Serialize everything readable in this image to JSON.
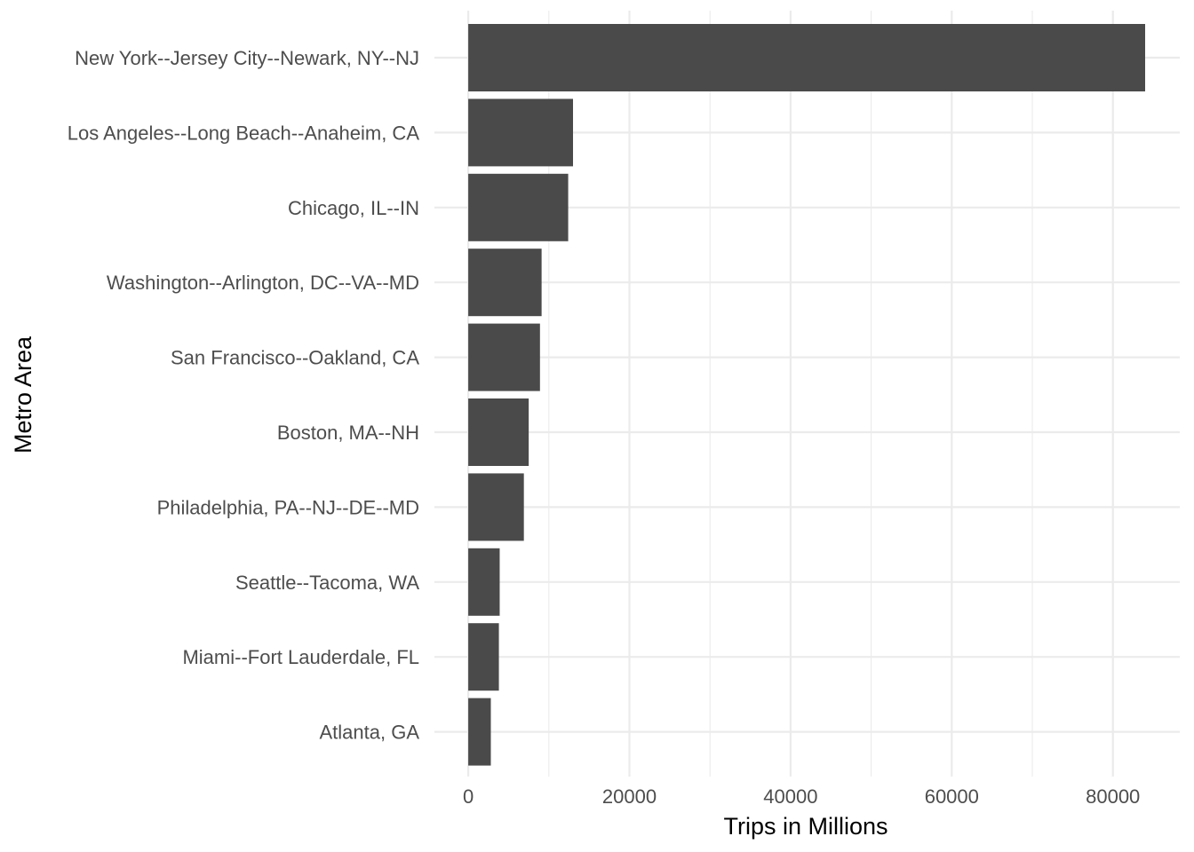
{
  "chart_data": {
    "type": "bar",
    "orientation": "horizontal",
    "categories": [
      "New York--Jersey City--Newark, NY--NJ",
      "Los Angeles--Long Beach--Anaheim, CA",
      "Chicago, IL--IN",
      "Washington--Arlington, DC--VA--MD",
      "San Francisco--Oakland, CA",
      "Boston, MA--NH",
      "Philadelphia, PA--NJ--DE--MD",
      "Seattle--Tacoma, WA",
      "Miami--Fort Lauderdale, FL",
      "Atlanta, GA"
    ],
    "values": [
      84000,
      13000,
      12400,
      9100,
      8900,
      7500,
      6900,
      3900,
      3800,
      2800
    ],
    "xlabel": "Trips in Millions",
    "ylabel": "Metro Area",
    "xlim": [
      -4200,
      88300
    ],
    "x_ticks": [
      0,
      20000,
      40000,
      60000,
      80000
    ],
    "x_tick_labels": [
      "0",
      "20000",
      "40000",
      "60000",
      "80000"
    ],
    "grid": true,
    "bar_color": "#4a4a4a",
    "grid_color": "#ebebeb"
  }
}
